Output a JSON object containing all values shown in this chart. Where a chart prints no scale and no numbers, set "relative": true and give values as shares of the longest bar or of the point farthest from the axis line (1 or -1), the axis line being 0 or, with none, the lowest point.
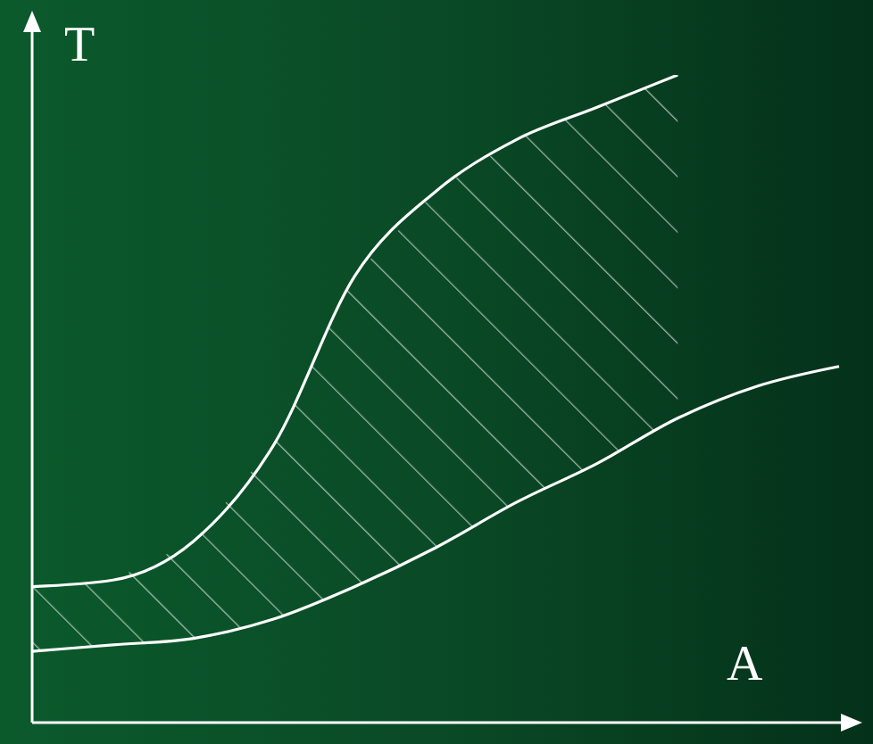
{
  "chart_data": {
    "type": "line",
    "relative": true,
    "xlabel": "A",
    "ylabel": "T",
    "categories": [
      null,
      null,
      null,
      null,
      null,
      null,
      null,
      null,
      null,
      null,
      null
    ],
    "marker": "none",
    "line_style": "solid",
    "grid": false,
    "series": [
      {
        "color": "#ffffff",
        "values": [
          0.21,
          0.22,
          0.28,
          0.43,
          0.69,
          0.82,
          0.9,
          0.95,
          1,
          null,
          null
        ],
        "lower": [
          0.11,
          0.12,
          0.13,
          0.16,
          0.21,
          0.27,
          0.34,
          0.4,
          0.47,
          null,
          null
        ],
        "upper": [
          0.21,
          0.22,
          0.28,
          0.43,
          0.69,
          0.82,
          0.9,
          0.95,
          1,
          null,
          null
        ]
      },
      {
        "color": "#ffffff",
        "values": [
          0.11,
          0.12,
          0.13,
          0.16,
          0.21,
          0.27,
          0.34,
          0.4,
          0.47,
          0.52,
          0.55
        ]
      }
    ]
  }
}
